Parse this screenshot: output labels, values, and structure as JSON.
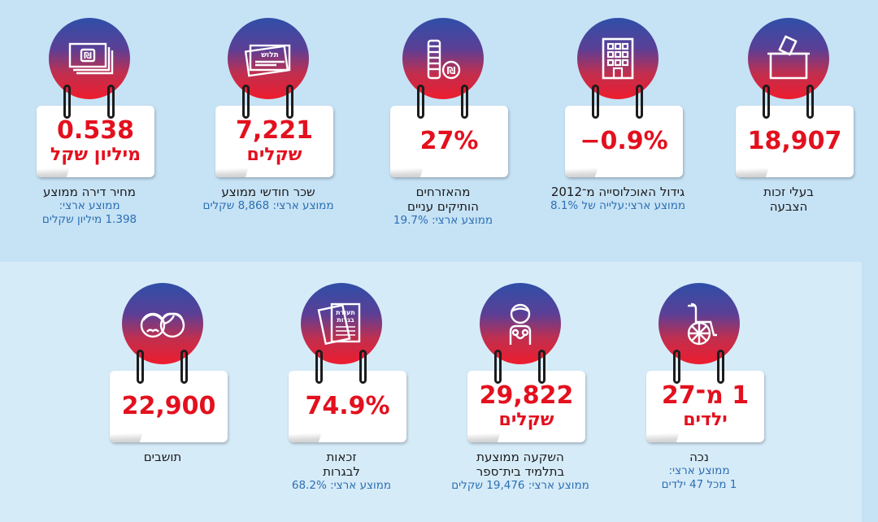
{
  "colors": {
    "circle_top": "#2e4fa8",
    "circle_bottom": "#ee1c2e",
    "number": "#e3101e",
    "national_avg": "#2b6fb3",
    "background": "#c6e2f5"
  },
  "stats": [
    {
      "icon": "ballot-box-icon",
      "value": "18,907",
      "unit": "",
      "caption": [
        "בעלי זכות",
        "הצבעה"
      ],
      "national": []
    },
    {
      "icon": "building-icon",
      "value": "−0.9%",
      "unit": "",
      "caption": [
        "גידול האוכלוסייה מ־2012"
      ],
      "national": [
        "ממוצע ארצי:עלייה של 8.1%"
      ]
    },
    {
      "icon": "coins-stack-icon",
      "value": "27%",
      "unit": "",
      "caption": [
        "מהאזרחים",
        "הותיקים עניים"
      ],
      "national": [
        "ממוצע ארצי: 19.7%"
      ]
    },
    {
      "icon": "paycheck-icon",
      "value": "7,221",
      "unit": "שקלים",
      "caption": [
        "שכר חודשי ממוצע"
      ],
      "national": [
        "ממוצע ארצי: 8,868 שקלים"
      ]
    },
    {
      "icon": "banknotes-icon",
      "value": "0.538",
      "unit": "מיליון שקל",
      "caption": [
        "מחיר דירה ממוצע"
      ],
      "national": [
        "ממוצע ארצי:",
        "1.398 מיליון שקלים"
      ]
    },
    {
      "icon": "wheelchair-icon",
      "value": "1 מ־27",
      "unit": "ילדים",
      "caption": [
        "נכה"
      ],
      "national": [
        "ממוצע ארצי:",
        "1 מכל 47 ילדים"
      ]
    },
    {
      "icon": "student-icon",
      "value": "29,822",
      "unit": "שקלים",
      "caption": [
        "השקעה ממוצעת",
        "בתלמיד בית־ספר"
      ],
      "national": [
        "ממוצע ארצי: 19,476 שקלים"
      ]
    },
    {
      "icon": "matriculation-certificate-icon",
      "value": "74.9%",
      "unit": "",
      "caption": [
        "זכאות",
        "לבגרות"
      ],
      "national": [
        "ממוצע ארצי: 68.2%"
      ]
    },
    {
      "icon": "residents-faces-icon",
      "value": "22,900",
      "unit": "",
      "caption": [
        "תושבים"
      ],
      "national": []
    }
  ],
  "icon_text": {
    "shekel_sign": "₪",
    "paycheck_label": "תלוש",
    "certificate_line1": "תעודת",
    "certificate_line2": "בגרות"
  }
}
